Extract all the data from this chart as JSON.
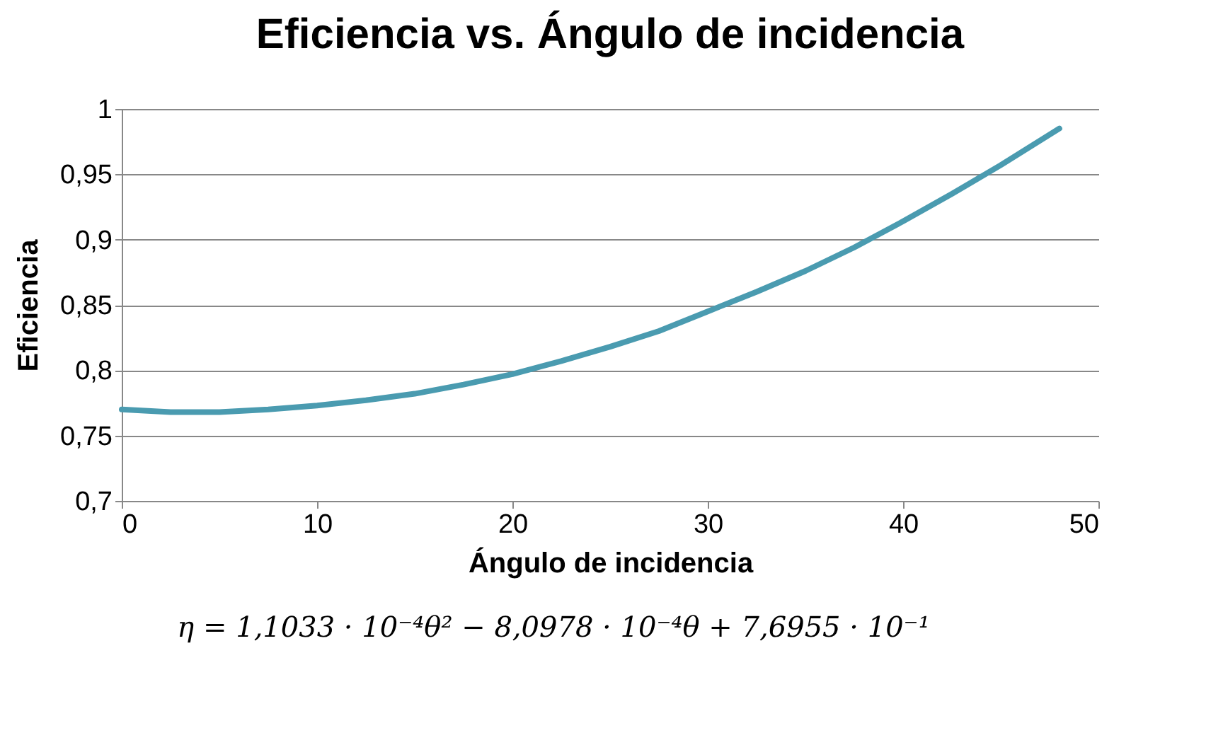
{
  "chart_data": {
    "type": "line",
    "title": "Eficiencia vs. Ángulo de incidencia",
    "xlabel": "Ángulo de incidencia",
    "ylabel": "Eficiencia",
    "x": [
      0,
      2.5,
      5,
      7.5,
      10,
      12.5,
      15,
      17.5,
      20,
      22.5,
      25,
      27.5,
      30,
      32.5,
      35,
      37.5,
      40,
      42.5,
      45,
      48
    ],
    "series": [
      {
        "color": "#4a9bb0",
        "values": [
          0.77,
          0.768,
          0.768,
          0.77,
          0.773,
          0.777,
          0.782,
          0.789,
          0.797,
          0.807,
          0.818,
          0.83,
          0.845,
          0.86,
          0.876,
          0.894,
          0.914,
          0.935,
          0.957,
          0.985
        ]
      }
    ],
    "xlim": [
      0,
      50
    ],
    "xticks": [
      0,
      10,
      20,
      30,
      40,
      50
    ],
    "ylim": [
      0.7,
      1
    ],
    "yticks": [
      {
        "value": 0.7,
        "label": "0,7"
      },
      {
        "value": 0.75,
        "label": "0,75"
      },
      {
        "value": 0.8,
        "label": "0,8"
      },
      {
        "value": 0.85,
        "label": "0,85"
      },
      {
        "value": 0.9,
        "label": "0,9"
      },
      {
        "value": 0.95,
        "label": "0,95"
      },
      {
        "value": 1,
        "label": "1"
      }
    ],
    "grid": "y",
    "marker": "none",
    "line_style": "solid",
    "annotations": [
      "η = 1,1033 · 10⁻⁴θ² − 8,0978 · 10⁻⁴θ + 7,6955 · 10⁻¹"
    ]
  }
}
